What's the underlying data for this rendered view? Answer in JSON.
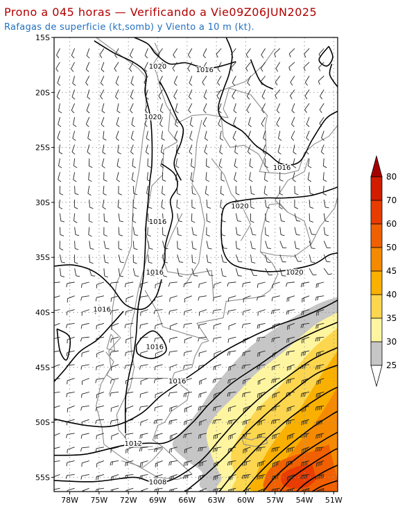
{
  "title": "Prono a 045 horas — Verificando a Vie09Z06JUN2025",
  "subtitle": "Rafagas de superficie (kt,somb) y Viento a 10 m (kt).",
  "colors": {
    "title": "#b00000",
    "subtitle": "#1f6fc0"
  },
  "map": {
    "lat_labels": [
      "15S",
      "20S",
      "25S",
      "30S",
      "35S",
      "40S",
      "45S",
      "50S",
      "55S"
    ],
    "lon_labels": [
      "78W",
      "75W",
      "72W",
      "69W",
      "66W",
      "63W",
      "60W",
      "57W",
      "54W",
      "51W"
    ],
    "isobar_labels": [
      {
        "text": "1020",
        "lon": -69.0,
        "lat": -17.6
      },
      {
        "text": "1016",
        "lon": -64.2,
        "lat": -17.9
      },
      {
        "text": "1020",
        "lon": -69.5,
        "lat": -22.2
      },
      {
        "text": "1016",
        "lon": -56.3,
        "lat": -26.8
      },
      {
        "text": "1020",
        "lon": -60.6,
        "lat": -30.3
      },
      {
        "text": "1016",
        "lon": -69.0,
        "lat": -31.7
      },
      {
        "text": "1016",
        "lon": -69.3,
        "lat": -36.3
      },
      {
        "text": "1020",
        "lon": -55.0,
        "lat": -36.3
      },
      {
        "text": "1016",
        "lon": -74.7,
        "lat": -39.7
      },
      {
        "text": "1016",
        "lon": -69.3,
        "lat": -43.1
      },
      {
        "text": "1016",
        "lon": -67.0,
        "lat": -46.2
      },
      {
        "text": "1012",
        "lon": -71.5,
        "lat": -51.9
      },
      {
        "text": "1008",
        "lon": -69.0,
        "lat": -55.4
      }
    ]
  },
  "legend": {
    "values": [
      "80",
      "70",
      "60",
      "50",
      "45",
      "40",
      "35",
      "30",
      "25"
    ],
    "colors": [
      "#a50000",
      "#d21c00",
      "#e83c00",
      "#f06000",
      "#f58a00",
      "#f9b000",
      "#fcd64e",
      "#fff5a0",
      "#c6c6c6"
    ]
  }
}
